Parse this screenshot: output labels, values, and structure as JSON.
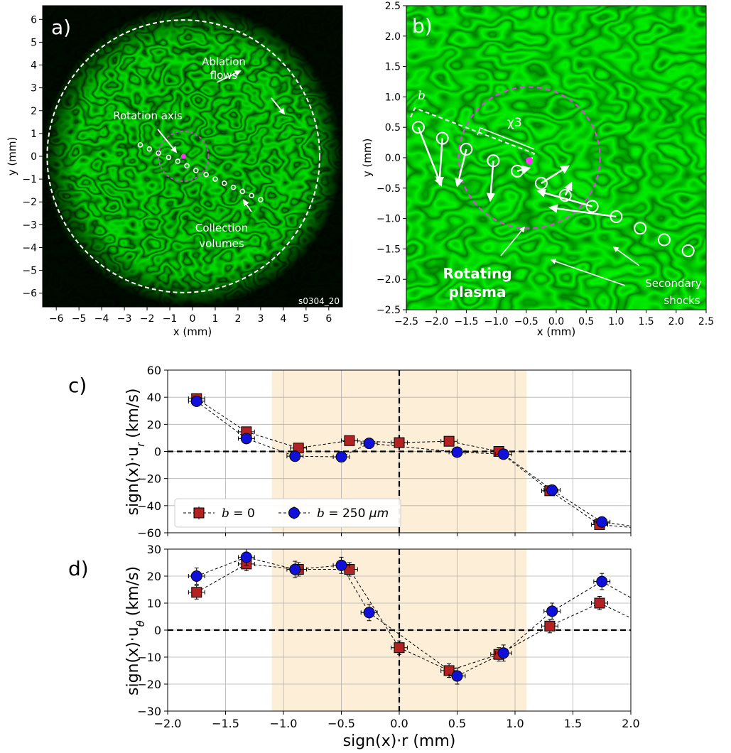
{
  "image_a": {
    "panel_label": "a)",
    "xlabel": "x (mm)",
    "ylabel": "y (mm)",
    "xlim": [
      -6.6,
      6.6
    ],
    "ylim": [
      -6.6,
      6.6
    ],
    "xticks": [
      -6,
      -5,
      -4,
      -3,
      -2,
      -1,
      0,
      1,
      2,
      3,
      4,
      5,
      6
    ],
    "yticks": [
      -6,
      -5,
      -4,
      -3,
      -2,
      -1,
      0,
      1,
      2,
      3,
      4,
      5,
      6
    ],
    "outer_circle": {
      "cx": -0.4,
      "cy": 0,
      "r": 6.0
    },
    "inner_circle": {
      "cx": -0.4,
      "cy": 0,
      "r": 1.1
    },
    "rotation_axis_point": {
      "x": -0.4,
      "y": 0
    },
    "collection_volumes": [
      {
        "x": -2.3,
        "y": 0.5
      },
      {
        "x": -1.9,
        "y": 0.32
      },
      {
        "x": -1.5,
        "y": 0.14
      },
      {
        "x": -1.05,
        "y": -0.05
      },
      {
        "x": -0.65,
        "y": -0.22
      },
      {
        "x": -0.25,
        "y": -0.42
      },
      {
        "x": 0.15,
        "y": -0.62
      },
      {
        "x": 0.6,
        "y": -0.8
      },
      {
        "x": 1.0,
        "y": -1.0
      },
      {
        "x": 1.4,
        "y": -1.18
      },
      {
        "x": 1.8,
        "y": -1.36
      },
      {
        "x": 2.2,
        "y": -1.54
      },
      {
        "x": 2.6,
        "y": -1.72
      },
      {
        "x": 3.0,
        "y": -1.9
      }
    ],
    "annotations": {
      "rotation_axis": "Rotation axis",
      "ablation_1": "Ablation",
      "ablation_2": "flows",
      "collection_1": "Collection",
      "collection_2": "volumes",
      "shot_id": "s0304_20"
    }
  },
  "image_b": {
    "panel_label": "b)",
    "xlabel": "x (mm)",
    "ylabel": "y (mm)",
    "xlim": [
      -2.5,
      2.5
    ],
    "ylim": [
      -2.5,
      2.5
    ],
    "xticks": [
      -2.5,
      -2.0,
      -1.5,
      -1.0,
      -0.5,
      0.0,
      0.5,
      1.0,
      1.5,
      2.0,
      2.5
    ],
    "yticks": [
      -2.5,
      -2.0,
      -1.5,
      -1.0,
      -0.5,
      0.0,
      0.5,
      1.0,
      1.5,
      2.0,
      2.5
    ],
    "tick_labels": [
      "−2.5",
      "−2.0",
      "−1.5",
      "−1.0",
      "−0.5",
      "0.0",
      "0.5",
      "1.0",
      "1.5",
      "2.0",
      "2.5"
    ],
    "rotating_circle": {
      "cx": -0.45,
      "cy": 0.0,
      "r": 1.18
    },
    "axis_point": {
      "x": -0.45,
      "y": -0.05
    },
    "collection_volumes": [
      {
        "x": -2.3,
        "y": 0.5
      },
      {
        "x": -1.9,
        "y": 0.32
      },
      {
        "x": -1.5,
        "y": 0.14
      },
      {
        "x": -1.05,
        "y": -0.05
      },
      {
        "x": -0.65,
        "y": -0.22
      },
      {
        "x": -0.25,
        "y": -0.42
      },
      {
        "x": 0.15,
        "y": -0.62
      },
      {
        "x": 0.6,
        "y": -0.8
      },
      {
        "x": 1.0,
        "y": -0.97
      },
      {
        "x": 1.4,
        "y": -1.16
      },
      {
        "x": 1.8,
        "y": -1.35
      },
      {
        "x": 2.2,
        "y": -1.53
      }
    ],
    "velocity_arrows": [
      {
        "x": -2.3,
        "y": 0.5,
        "dx": 0.38,
        "dy": -0.95
      },
      {
        "x": -1.9,
        "y": 0.32,
        "dx": -0.05,
        "dy": -0.75
      },
      {
        "x": -1.5,
        "y": 0.14,
        "dx": -0.15,
        "dy": -0.6
      },
      {
        "x": -1.05,
        "y": -0.05,
        "dx": -0.05,
        "dy": -0.65
      },
      {
        "x": -0.65,
        "y": -0.22,
        "dx": 0.2,
        "dy": 0.05
      },
      {
        "x": -0.25,
        "y": -0.42,
        "dx": 0.45,
        "dy": 0.28
      },
      {
        "x": 0.15,
        "y": -0.62,
        "dx": 0.1,
        "dy": 0.2
      },
      {
        "x": 0.6,
        "y": -0.8,
        "dx": -0.9,
        "dy": 0.25
      },
      {
        "x": 1.0,
        "y": -0.97,
        "dx": -1.1,
        "dy": 0.15
      }
    ],
    "annotations": {
      "b_label": "b",
      "chi_label": "χ3",
      "rotating_1": "Rotating",
      "rotating_2": "plasma",
      "secondary_1": "Secondary",
      "secondary_2": "shocks"
    }
  },
  "chart_data": [
    {
      "type": "scatter",
      "panel_label": "c)",
      "xlabel": "sign(x)·r (mm)",
      "ylabel": "sign(x)·u",
      "ylabel_sub": "r",
      "ylabel_unit": "(km/s)",
      "xlim": [
        -2.0,
        2.0
      ],
      "ylim": [
        -60,
        60
      ],
      "yticks": [
        -60,
        -40,
        -20,
        0,
        20,
        40,
        60
      ],
      "ytick_labels": [
        "−60",
        "−40",
        "−20",
        "0",
        "20",
        "40",
        "60"
      ],
      "grid": true,
      "shaded_region": [
        -1.1,
        1.1
      ],
      "legend_placement": "lower-left",
      "series": [
        {
          "name": "b = 0",
          "legend_math": "b",
          "legend_value": " = 0",
          "marker": "square",
          "color": "#b22222",
          "x": [
            -1.75,
            -1.32,
            -0.87,
            -0.43,
            0.0,
            0.43,
            0.86,
            1.3,
            1.73
          ],
          "y": [
            39,
            14.5,
            2.5,
            8,
            6.5,
            7.5,
            0,
            -29,
            -54
          ],
          "xerr": 0.07,
          "yerr": 2.5
        },
        {
          "name": "b = 250 μm",
          "legend_math": "b",
          "legend_value": " = 250 ",
          "legend_unit": "μm",
          "marker": "circle",
          "color": "#1010d8",
          "x": [
            -1.75,
            -1.32,
            -0.9,
            -0.5,
            -0.26,
            0.5,
            0.9,
            1.32,
            1.75
          ],
          "y": [
            37,
            9.5,
            -3.5,
            -4,
            6,
            -0.5,
            -2,
            -28.5,
            -52
          ],
          "xerr": 0.07,
          "yerr": 2.5
        }
      ],
      "trailing_segments": [
        {
          "series": 0,
          "x1": 1.73,
          "y1": -54,
          "x2": 2.0,
          "y2": -56
        },
        {
          "series": 1,
          "x1": 1.75,
          "y1": -52,
          "x2": 2.0,
          "y2": -55
        }
      ]
    },
    {
      "type": "scatter",
      "panel_label": "d)",
      "xlabel": "sign(x)·r (mm)",
      "ylabel": "sign(x)·u",
      "ylabel_sub": "θ",
      "ylabel_unit": "(km/s)",
      "xlim": [
        -2.0,
        2.0
      ],
      "ylim": [
        -30,
        30
      ],
      "xticks": [
        -2.0,
        -1.5,
        -1.0,
        -0.5,
        0.0,
        0.5,
        1.0,
        1.5,
        2.0
      ],
      "xtick_labels": [
        "−2.0",
        "−1.5",
        "−1.0",
        "−0.5",
        "0.0",
        "0.5",
        "1.0",
        "1.5",
        "2.0"
      ],
      "yticks": [
        -30,
        -20,
        -10,
        0,
        10,
        20,
        30
      ],
      "ytick_labels": [
        "−30",
        "−20",
        "−10",
        "0",
        "10",
        "20",
        "30"
      ],
      "grid": true,
      "shaded_region": [
        -1.1,
        1.1
      ],
      "series": [
        {
          "name": "b = 0",
          "marker": "square",
          "color": "#b22222",
          "x": [
            -1.75,
            -1.32,
            -0.87,
            -0.43,
            0.0,
            0.43,
            0.86,
            1.3,
            1.73
          ],
          "y": [
            14,
            24.5,
            22.5,
            22.5,
            -6.5,
            -15,
            -9,
            1.5,
            10
          ],
          "xerr": 0.07,
          "yerr": 2.5
        },
        {
          "name": "b = 250 μm",
          "marker": "circle",
          "color": "#1010d8",
          "x": [
            -1.75,
            -1.32,
            -0.9,
            -0.5,
            -0.26,
            0.5,
            0.9,
            1.32,
            1.75
          ],
          "y": [
            20,
            27,
            22.5,
            24,
            6.5,
            -17,
            -8.5,
            7,
            18
          ],
          "xerr": 0.07,
          "yerr": 3
        }
      ],
      "trailing_segments": [
        {
          "series": 0,
          "x1": 1.73,
          "y1": 10,
          "x2": 2.0,
          "y2": 4.5
        },
        {
          "series": 1,
          "x1": 1.75,
          "y1": 18,
          "x2": 2.0,
          "y2": 12
        }
      ]
    }
  ]
}
